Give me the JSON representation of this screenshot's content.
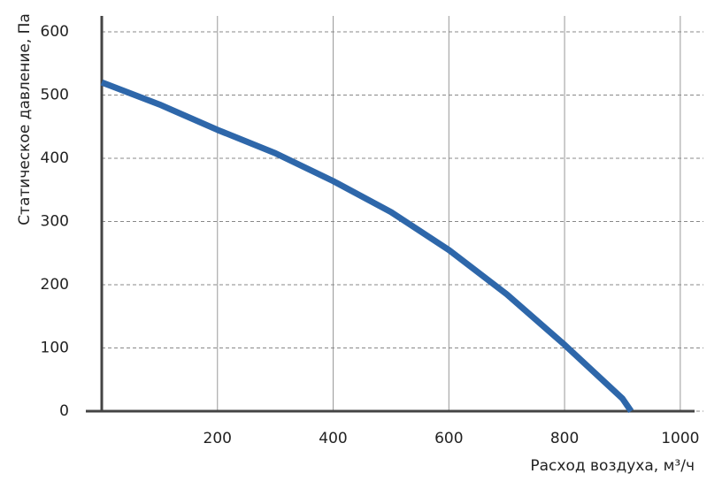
{
  "chart_data": {
    "type": "line",
    "xlabel": "Расход воздуха, м³/ч",
    "ylabel": "Статическое давление, Па",
    "x": [
      0,
      100,
      200,
      300,
      400,
      500,
      600,
      700,
      800,
      900,
      915
    ],
    "series": [
      {
        "color": "#2e67aa",
        "values": [
          520,
          485,
          445,
          408,
          364,
          315,
          255,
          185,
          105,
          20,
          0
        ]
      }
    ],
    "xlim": [
      0,
      1040
    ],
    "ylim": [
      0,
      600
    ],
    "xticks": [
      200,
      400,
      600,
      800,
      1000
    ],
    "yticks": [
      0,
      100,
      200,
      300,
      400,
      500,
      600
    ],
    "grid": true
  }
}
